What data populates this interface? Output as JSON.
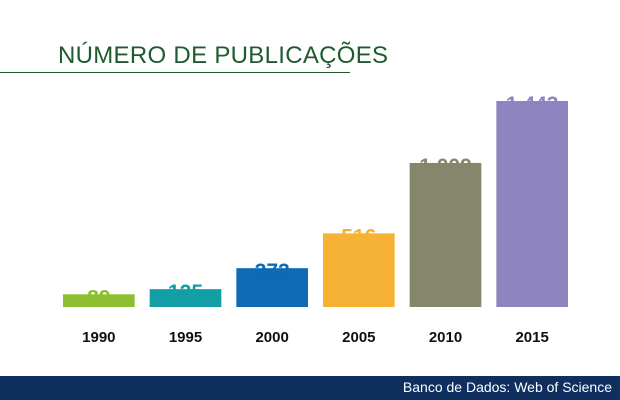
{
  "chart_data": {
    "type": "bar",
    "title": "NÚMERO DE PUBLICAÇÕES",
    "categories": [
      "1990",
      "1995",
      "2000",
      "2005",
      "2010",
      "2015"
    ],
    "values": [
      89,
      125,
      272,
      516,
      1009,
      1443
    ],
    "value_labels": [
      "89",
      "125",
      "272",
      "516",
      "1.009",
      "1.443"
    ],
    "colors": [
      "#8cbf2f",
      "#139ea6",
      "#0d6ab5",
      "#f6b234",
      "#86866c",
      "#8e85c0"
    ],
    "xlabel": "",
    "ylabel": "",
    "ylim": [
      0,
      1443
    ],
    "grid": false,
    "legend": "none"
  },
  "footer": {
    "source": "Banco de Dados: Web of Science",
    "background": "#0f2f5e"
  }
}
